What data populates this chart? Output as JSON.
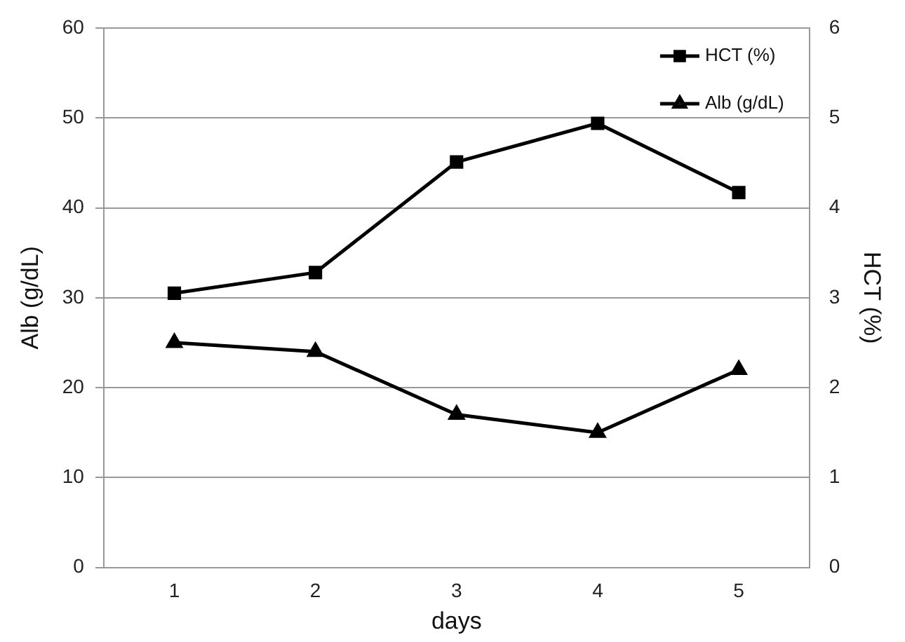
{
  "chart_data": {
    "type": "line",
    "xlabel": "days",
    "ylabel": "Alb (g/dL)",
    "y2label": "HCT (%)",
    "categories": [
      "1",
      "2",
      "3",
      "4",
      "5"
    ],
    "series": [
      {
        "name": "HCT (%)",
        "color": "#000000",
        "marker": "square",
        "values": [
          30.5,
          32.8,
          45.1,
          49.4,
          41.7
        ]
      },
      {
        "name": "Alb (g/dL)",
        "color": "#000000",
        "marker": "triangle",
        "axis": "y2",
        "values": [
          2.5,
          2.4,
          1.7,
          1.5,
          2.2
        ]
      }
    ],
    "ylim": [
      0,
      60
    ],
    "yticks": [
      0,
      10,
      20,
      30,
      40,
      50,
      60
    ],
    "y2lim": [
      0,
      6
    ],
    "y2ticks": [
      0,
      1,
      2,
      3,
      4,
      5,
      6
    ],
    "grid": "y",
    "legend": "top right",
    "line_style": "solid"
  }
}
